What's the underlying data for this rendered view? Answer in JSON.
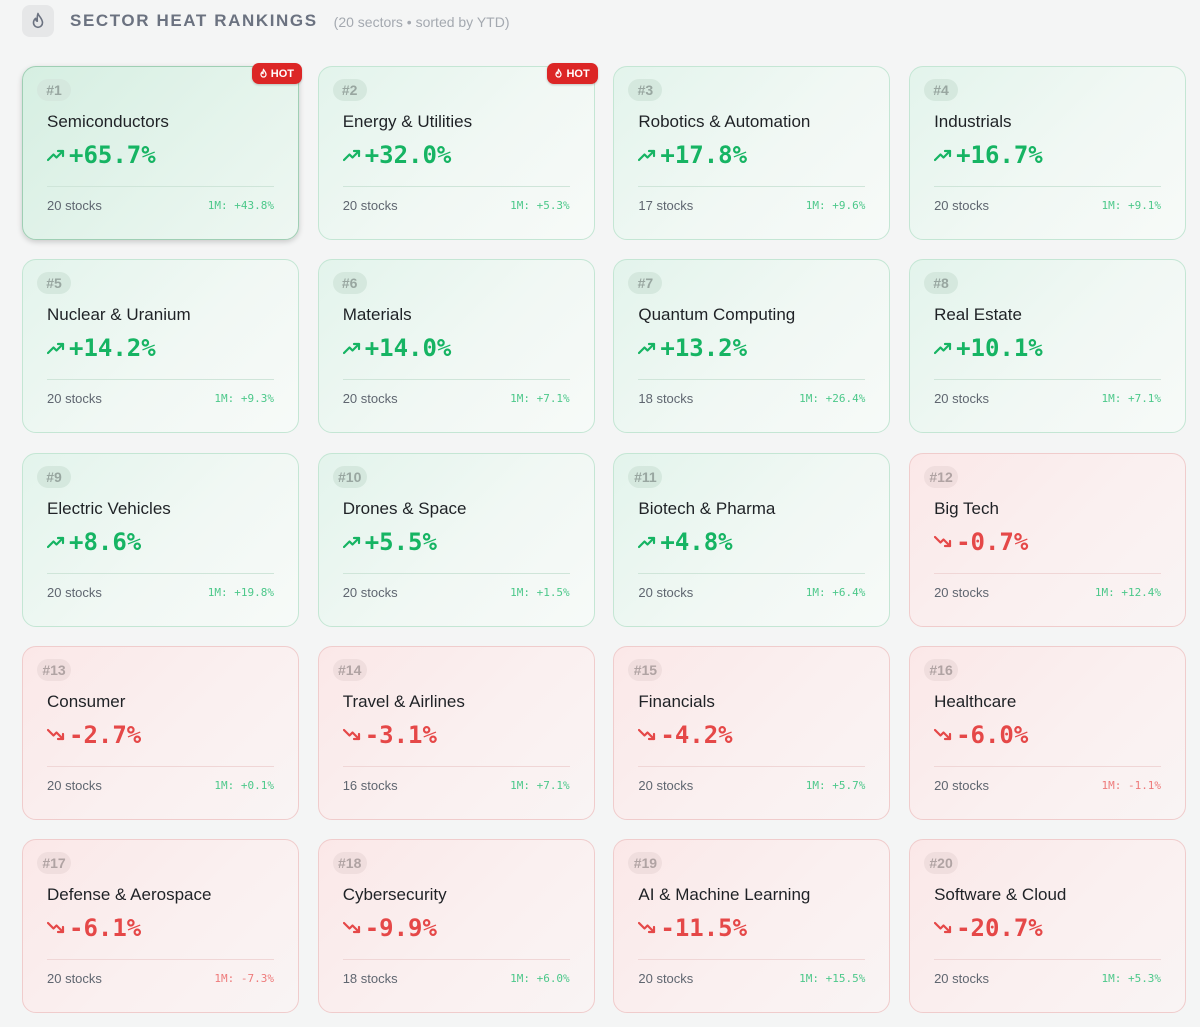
{
  "header": {
    "icon": "flame-icon",
    "title": "SECTOR HEAT RANKINGS",
    "subtitle": "(20 sectors • sorted by YTD)"
  },
  "colors": {
    "positive": "#16b463",
    "negative": "#e54848",
    "hot_badge": "#dc2626"
  },
  "sectors": [
    {
      "rank": "#1",
      "name": "Semiconductors",
      "ytd": "+65.7%",
      "stocks": "20 stocks",
      "m1": "1M: +43.8%",
      "trend": "up",
      "m1_trend": "up",
      "hot": "HOT",
      "highlighted": true
    },
    {
      "rank": "#2",
      "name": "Energy & Utilities",
      "ytd": "+32.0%",
      "stocks": "20 stocks",
      "m1": "1M: +5.3%",
      "trend": "up",
      "m1_trend": "up",
      "hot": "HOT"
    },
    {
      "rank": "#3",
      "name": "Robotics & Automation",
      "ytd": "+17.8%",
      "stocks": "17 stocks",
      "m1": "1M: +9.6%",
      "trend": "up",
      "m1_trend": "up"
    },
    {
      "rank": "#4",
      "name": "Industrials",
      "ytd": "+16.7%",
      "stocks": "20 stocks",
      "m1": "1M: +9.1%",
      "trend": "up",
      "m1_trend": "up"
    },
    {
      "rank": "#5",
      "name": "Nuclear & Uranium",
      "ytd": "+14.2%",
      "stocks": "20 stocks",
      "m1": "1M: +9.3%",
      "trend": "up",
      "m1_trend": "up"
    },
    {
      "rank": "#6",
      "name": "Materials",
      "ytd": "+14.0%",
      "stocks": "20 stocks",
      "m1": "1M: +7.1%",
      "trend": "up",
      "m1_trend": "up"
    },
    {
      "rank": "#7",
      "name": "Quantum Computing",
      "ytd": "+13.2%",
      "stocks": "18 stocks",
      "m1": "1M: +26.4%",
      "trend": "up",
      "m1_trend": "up"
    },
    {
      "rank": "#8",
      "name": "Real Estate",
      "ytd": "+10.1%",
      "stocks": "20 stocks",
      "m1": "1M: +7.1%",
      "trend": "up",
      "m1_trend": "up"
    },
    {
      "rank": "#9",
      "name": "Electric Vehicles",
      "ytd": "+8.6%",
      "stocks": "20 stocks",
      "m1": "1M: +19.8%",
      "trend": "up",
      "m1_trend": "up"
    },
    {
      "rank": "#10",
      "name": "Drones & Space",
      "ytd": "+5.5%",
      "stocks": "20 stocks",
      "m1": "1M: +1.5%",
      "trend": "up",
      "m1_trend": "up"
    },
    {
      "rank": "#11",
      "name": "Biotech & Pharma",
      "ytd": "+4.8%",
      "stocks": "20 stocks",
      "m1": "1M: +6.4%",
      "trend": "up",
      "m1_trend": "up"
    },
    {
      "rank": "#12",
      "name": "Big Tech",
      "ytd": "-0.7%",
      "stocks": "20 stocks",
      "m1": "1M: +12.4%",
      "trend": "down",
      "m1_trend": "up"
    },
    {
      "rank": "#13",
      "name": "Consumer",
      "ytd": "-2.7%",
      "stocks": "20 stocks",
      "m1": "1M: +0.1%",
      "trend": "down",
      "m1_trend": "up"
    },
    {
      "rank": "#14",
      "name": "Travel & Airlines",
      "ytd": "-3.1%",
      "stocks": "16 stocks",
      "m1": "1M: +7.1%",
      "trend": "down",
      "m1_trend": "up"
    },
    {
      "rank": "#15",
      "name": "Financials",
      "ytd": "-4.2%",
      "stocks": "20 stocks",
      "m1": "1M: +5.7%",
      "trend": "down",
      "m1_trend": "up"
    },
    {
      "rank": "#16",
      "name": "Healthcare",
      "ytd": "-6.0%",
      "stocks": "20 stocks",
      "m1": "1M: -1.1%",
      "trend": "down",
      "m1_trend": "down"
    },
    {
      "rank": "#17",
      "name": "Defense & Aerospace",
      "ytd": "-6.1%",
      "stocks": "20 stocks",
      "m1": "1M: -7.3%",
      "trend": "down",
      "m1_trend": "down"
    },
    {
      "rank": "#18",
      "name": "Cybersecurity",
      "ytd": "-9.9%",
      "stocks": "18 stocks",
      "m1": "1M: +6.0%",
      "trend": "down",
      "m1_trend": "up"
    },
    {
      "rank": "#19",
      "name": "AI & Machine Learning",
      "ytd": "-11.5%",
      "stocks": "20 stocks",
      "m1": "1M: +15.5%",
      "trend": "down",
      "m1_trend": "up"
    },
    {
      "rank": "#20",
      "name": "Software & Cloud",
      "ytd": "-20.7%",
      "stocks": "20 stocks",
      "m1": "1M: +5.3%",
      "trend": "down",
      "m1_trend": "up"
    }
  ]
}
